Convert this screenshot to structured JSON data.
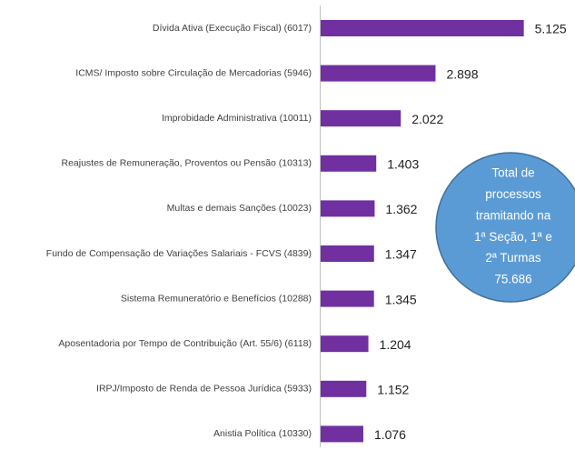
{
  "chart_data": {
    "type": "barh",
    "categories": [
      "Dívida Ativa (Execução Fiscal) (6017)",
      "ICMS/ Imposto sobre Circulação de Mercadorias (5946)",
      "Improbidade Administrativa (10011)",
      "Reajustes de Remuneração, Proventos ou Pensão (10313)",
      "Multas e demais Sanções (10023)",
      "Fundo de Compensação de Variações Salariais - FCVS (4839)",
      "Sistema Remuneratório e Benefícios (10288)",
      "Aposentadoria por Tempo de Contribuição (Art. 55/6) (6118)",
      "IRPJ/Imposto de Renda de Pessoa Jurídica (5933)",
      "Anistia Política (10330)"
    ],
    "values": [
      5125,
      2898,
      2022,
      1403,
      1362,
      1347,
      1345,
      1204,
      1152,
      1076
    ],
    "value_labels": [
      "5.125",
      "2.898",
      "2.022",
      "1.403",
      "1.362",
      "1.347",
      "1.345",
      "1.204",
      "1.152",
      "1.076"
    ],
    "color": "#7030a0",
    "xlim": [
      0,
      5500
    ],
    "annotation": [
      "Total de",
      "processos",
      "tramitando na",
      "1ª Seção, 1ª e",
      "2ª Turmas",
      "75.686"
    ]
  }
}
